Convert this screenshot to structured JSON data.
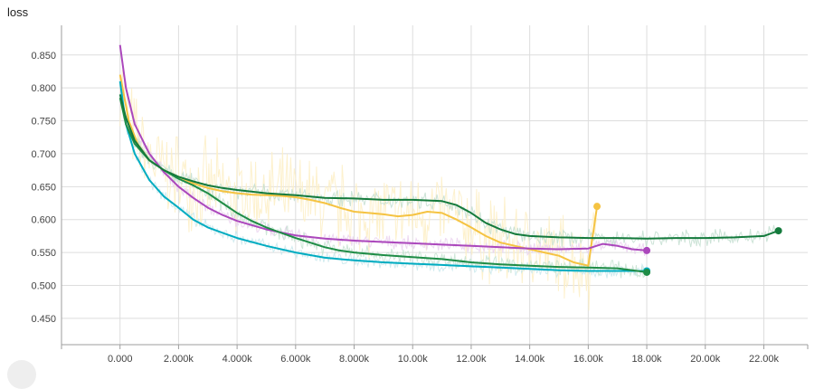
{
  "chart_data": {
    "type": "line",
    "title": "loss",
    "xlabel": "",
    "ylabel": "",
    "xlim": [
      -2000,
      23500
    ],
    "ylim": [
      0.41,
      0.895
    ],
    "x_ticks": [
      0,
      2000,
      4000,
      6000,
      8000,
      10000,
      12000,
      14000,
      16000,
      18000,
      20000,
      22000
    ],
    "x_tick_labels": [
      "0.000",
      "2.000k",
      "4.000k",
      "6.000k",
      "8.000k",
      "10.00k",
      "12.00k",
      "14.00k",
      "16.00k",
      "18.00k",
      "20.00k",
      "22.00k"
    ],
    "y_ticks": [
      0.45,
      0.5,
      0.55,
      0.6,
      0.65,
      0.7,
      0.75,
      0.8,
      0.85
    ],
    "y_tick_labels": [
      "0.450",
      "0.500",
      "0.550",
      "0.600",
      "0.650",
      "0.700",
      "0.750",
      "0.800",
      "0.850"
    ],
    "grid": true,
    "legend": "none",
    "series": [
      {
        "color": "#f5c342",
        "raw_color": "#fdeec4",
        "noise": 0.055,
        "x": [
          0,
          300,
          600,
          1000,
          1500,
          2000,
          2500,
          3000,
          3500,
          4000,
          4500,
          5000,
          5500,
          6000,
          6500,
          7000,
          7500,
          8000,
          8500,
          9000,
          9500,
          10000,
          10500,
          11000,
          11500,
          12000,
          12500,
          13000,
          13500,
          14000,
          14500,
          15000,
          15500,
          16000,
          16300
        ],
        "y": [
          0.82,
          0.75,
          0.715,
          0.69,
          0.675,
          0.665,
          0.655,
          0.648,
          0.643,
          0.64,
          0.638,
          0.637,
          0.636,
          0.634,
          0.63,
          0.625,
          0.618,
          0.612,
          0.61,
          0.608,
          0.605,
          0.607,
          0.612,
          0.61,
          0.6,
          0.588,
          0.575,
          0.565,
          0.56,
          0.555,
          0.55,
          0.545,
          0.535,
          0.53,
          0.62
        ]
      },
      {
        "color": "#ab47bc",
        "raw_color": "#ead1ee",
        "noise": 0.008,
        "x": [
          0,
          200,
          500,
          1000,
          1500,
          2000,
          2500,
          3000,
          3500,
          4000,
          5000,
          6000,
          7000,
          8000,
          9000,
          10000,
          11000,
          12000,
          13000,
          14000,
          15000,
          16000,
          16500,
          17000,
          17500,
          18000
        ],
        "y": [
          0.865,
          0.8,
          0.745,
          0.7,
          0.672,
          0.65,
          0.633,
          0.618,
          0.607,
          0.598,
          0.585,
          0.576,
          0.571,
          0.568,
          0.566,
          0.564,
          0.562,
          0.56,
          0.558,
          0.556,
          0.555,
          0.556,
          0.563,
          0.56,
          0.555,
          0.553
        ]
      },
      {
        "color": "#00acc1",
        "raw_color": "#c8e8ec",
        "noise": 0.008,
        "x": [
          0,
          200,
          500,
          1000,
          1500,
          2000,
          2500,
          3000,
          3500,
          4000,
          5000,
          6000,
          7000,
          8000,
          9000,
          10000,
          11000,
          12000,
          13000,
          14000,
          15000,
          16000,
          17000,
          18000
        ],
        "y": [
          0.81,
          0.745,
          0.7,
          0.66,
          0.635,
          0.618,
          0.6,
          0.588,
          0.58,
          0.572,
          0.56,
          0.55,
          0.542,
          0.538,
          0.535,
          0.533,
          0.531,
          0.529,
          0.527,
          0.525,
          0.523,
          0.522,
          0.522,
          0.522
        ]
      },
      {
        "color": "#1e8c46",
        "raw_color": "#c6e3d1",
        "noise": 0.01,
        "x": [
          0,
          200,
          500,
          1000,
          1500,
          2000,
          2500,
          3000,
          3500,
          4000,
          4500,
          5000,
          5500,
          6000,
          6500,
          7000,
          7500,
          8000,
          9000,
          10000,
          11000,
          12000,
          13000,
          14000,
          15000,
          16000,
          17000,
          18000
        ],
        "y": [
          0.785,
          0.745,
          0.715,
          0.69,
          0.675,
          0.662,
          0.652,
          0.64,
          0.625,
          0.61,
          0.598,
          0.588,
          0.58,
          0.572,
          0.565,
          0.558,
          0.553,
          0.55,
          0.546,
          0.543,
          0.54,
          0.535,
          0.532,
          0.53,
          0.528,
          0.527,
          0.526,
          0.52
        ]
      },
      {
        "color": "#147a3c",
        "raw_color": "#c3ded0",
        "noise": 0.01,
        "x": [
          0,
          200,
          500,
          1000,
          1500,
          2000,
          2500,
          3000,
          3500,
          4000,
          5000,
          6000,
          7000,
          8000,
          9000,
          10000,
          11000,
          11500,
          12000,
          12500,
          13000,
          13500,
          14000,
          15000,
          16000,
          17000,
          18000,
          19000,
          20000,
          21000,
          22000,
          22500
        ],
        "y": [
          0.79,
          0.755,
          0.72,
          0.69,
          0.675,
          0.665,
          0.658,
          0.652,
          0.648,
          0.645,
          0.64,
          0.637,
          0.633,
          0.632,
          0.63,
          0.63,
          0.628,
          0.622,
          0.61,
          0.595,
          0.585,
          0.578,
          0.575,
          0.573,
          0.572,
          0.572,
          0.571,
          0.572,
          0.572,
          0.573,
          0.575,
          0.583
        ]
      }
    ]
  }
}
